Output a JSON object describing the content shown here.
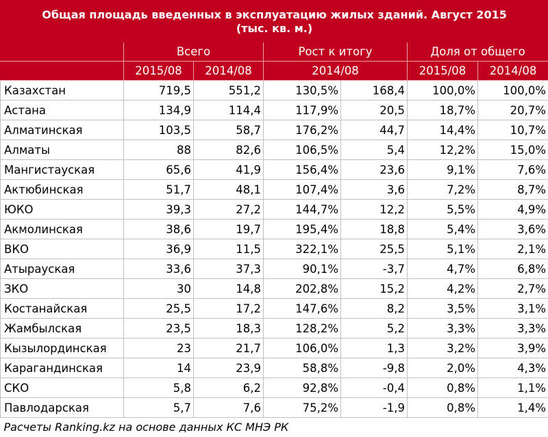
{
  "chart_data": {
    "type": "table",
    "title": "Общая площадь введенных в эксплуатацию жилых зданий. Август 2015",
    "subtitle": "(тыс. кв. м.)",
    "group_headers": [
      "Всего",
      "Рост к итогу",
      "Доля от общего"
    ],
    "sub_headers": [
      "2015/08",
      "2014/08",
      "2014/08",
      "2015/08",
      "2014/08"
    ],
    "rows": [
      {
        "region": "Казахстан",
        "total_2015": "719,5",
        "total_2014": "551,2",
        "growth_pct": "130,5%",
        "growth_abs": "168,4",
        "share_2015": "100,0%",
        "share_2014": "100,0%"
      },
      {
        "region": "Астана",
        "total_2015": "134,9",
        "total_2014": "114,4",
        "growth_pct": "117,9%",
        "growth_abs": "20,5",
        "share_2015": "18,7%",
        "share_2014": "20,7%"
      },
      {
        "region": "Алматинская",
        "total_2015": "103,5",
        "total_2014": "58,7",
        "growth_pct": "176,2%",
        "growth_abs": "44,7",
        "share_2015": "14,4%",
        "share_2014": "10,7%"
      },
      {
        "region": "Алматы",
        "total_2015": "88",
        "total_2014": "82,6",
        "growth_pct": "106,5%",
        "growth_abs": "5,4",
        "share_2015": "12,2%",
        "share_2014": "15,0%"
      },
      {
        "region": "Мангистауская",
        "total_2015": "65,6",
        "total_2014": "41,9",
        "growth_pct": "156,4%",
        "growth_abs": "23,6",
        "share_2015": "9,1%",
        "share_2014": "7,6%"
      },
      {
        "region": "Актюбинская",
        "total_2015": "51,7",
        "total_2014": "48,1",
        "growth_pct": "107,4%",
        "growth_abs": "3,6",
        "share_2015": "7,2%",
        "share_2014": "8,7%"
      },
      {
        "region": "ЮКО",
        "total_2015": "39,3",
        "total_2014": "27,2",
        "growth_pct": "144,7%",
        "growth_abs": "12,2",
        "share_2015": "5,5%",
        "share_2014": "4,9%"
      },
      {
        "region": "Акмолинская",
        "total_2015": "38,6",
        "total_2014": "19,7",
        "growth_pct": "195,4%",
        "growth_abs": "18,8",
        "share_2015": "5,4%",
        "share_2014": "3,6%"
      },
      {
        "region": "ВКО",
        "total_2015": "36,9",
        "total_2014": "11,5",
        "growth_pct": "322,1%",
        "growth_abs": "25,5",
        "share_2015": "5,1%",
        "share_2014": "2,1%"
      },
      {
        "region": "Атырауская",
        "total_2015": "33,6",
        "total_2014": "37,3",
        "growth_pct": "90,1%",
        "growth_abs": "-3,7",
        "share_2015": "4,7%",
        "share_2014": "6,8%"
      },
      {
        "region": "ЗКО",
        "total_2015": "30",
        "total_2014": "14,8",
        "growth_pct": "202,8%",
        "growth_abs": "15,2",
        "share_2015": "4,2%",
        "share_2014": "2,7%"
      },
      {
        "region": "Костанайская",
        "total_2015": "25,5",
        "total_2014": "17,2",
        "growth_pct": "147,6%",
        "growth_abs": "8,2",
        "share_2015": "3,5%",
        "share_2014": "3,1%"
      },
      {
        "region": "Жамбылская",
        "total_2015": "23,5",
        "total_2014": "18,3",
        "growth_pct": "128,2%",
        "growth_abs": "5,2",
        "share_2015": "3,3%",
        "share_2014": "3,3%"
      },
      {
        "region": "Кызылординская",
        "total_2015": "23",
        "total_2014": "21,7",
        "growth_pct": "106,0%",
        "growth_abs": "1,3",
        "share_2015": "3,2%",
        "share_2014": "3,9%"
      },
      {
        "region": "Карагандинская",
        "total_2015": "14",
        "total_2014": "23,9",
        "growth_pct": "58,8%",
        "growth_abs": "-9,8",
        "share_2015": "2,0%",
        "share_2014": "4,3%"
      },
      {
        "region": "СКО",
        "total_2015": "5,8",
        "total_2014": "6,2",
        "growth_pct": "92,8%",
        "growth_abs": "-0,4",
        "share_2015": "0,8%",
        "share_2014": "1,1%"
      },
      {
        "region": "Павлодарская",
        "total_2015": "5,7",
        "total_2014": "7,6",
        "growth_pct": "75,2%",
        "growth_abs": "-1,9",
        "share_2015": "0,8%",
        "share_2014": "1,4%"
      }
    ],
    "footnote": "Расчеты Ranking.kz на основе данных КС МНЭ РК"
  },
  "colors": {
    "header_background": "#c0001e",
    "header_text": "#ffffff",
    "grid": "#bfbfbf"
  }
}
